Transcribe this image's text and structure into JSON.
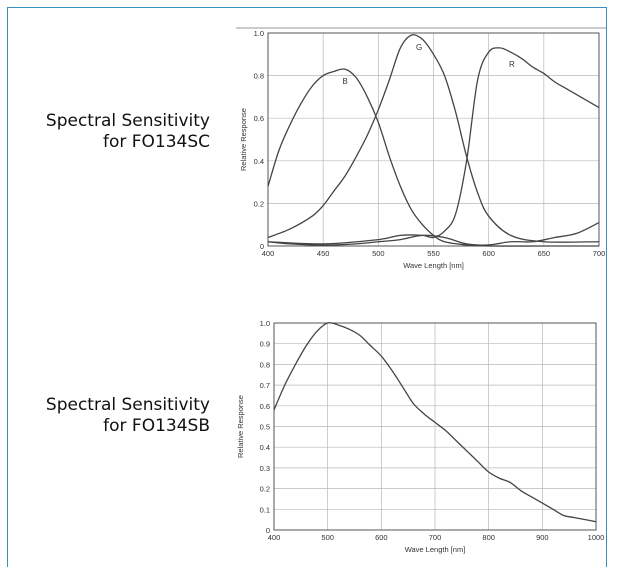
{
  "captions": [
    {
      "line1": "Spectral Sensitivity",
      "line2": "for FO134SC"
    },
    {
      "line1": "Spectral Sensitivity",
      "line2": "for FO134SB"
    }
  ],
  "colors": {
    "frame": "#3a8fbf",
    "curve": "#444444",
    "grid": "#b8b8b8"
  },
  "chart_data": [
    {
      "type": "line",
      "title": "",
      "xlabel": "Wave Length [nm]",
      "ylabel": "Relative Response",
      "xlim": [
        400,
        700
      ],
      "ylim": [
        0,
        1.0
      ],
      "x_ticks": [
        "400",
        "450",
        "500",
        "550",
        "600",
        "650",
        "700"
      ],
      "y_ticks": [
        "0",
        "0.2",
        "0.4",
        "0.6",
        "0.8",
        "1.0"
      ],
      "grid": true,
      "series": [
        {
          "name": "B",
          "label_at": [
            470,
            0.76
          ],
          "x": [
            400,
            410,
            420,
            430,
            440,
            450,
            460,
            470,
            480,
            490,
            500,
            510,
            520,
            530,
            540,
            550,
            560,
            580,
            600,
            650,
            700
          ],
          "y": [
            0.28,
            0.45,
            0.57,
            0.67,
            0.75,
            0.8,
            0.82,
            0.83,
            0.79,
            0.7,
            0.58,
            0.42,
            0.28,
            0.17,
            0.1,
            0.05,
            0.02,
            0.005,
            0,
            0,
            0
          ]
        },
        {
          "name": "G",
          "label_at": [
            537,
            0.92
          ],
          "x": [
            400,
            420,
            440,
            450,
            460,
            470,
            480,
            490,
            500,
            510,
            520,
            530,
            540,
            550,
            560,
            570,
            580,
            590,
            600,
            620,
            650,
            700
          ],
          "y": [
            0.04,
            0.08,
            0.14,
            0.19,
            0.26,
            0.33,
            0.42,
            0.52,
            0.64,
            0.78,
            0.93,
            0.99,
            0.97,
            0.9,
            0.8,
            0.63,
            0.42,
            0.25,
            0.14,
            0.05,
            0.02,
            0.02
          ]
        },
        {
          "name": "R",
          "label_at": [
            621,
            0.84
          ],
          "x": [
            400,
            450,
            500,
            520,
            540,
            550,
            560,
            570,
            580,
            590,
            600,
            610,
            620,
            630,
            640,
            650,
            660,
            670,
            680,
            690,
            700
          ],
          "y": [
            0.02,
            0.01,
            0.03,
            0.05,
            0.05,
            0.04,
            0.07,
            0.15,
            0.4,
            0.78,
            0.91,
            0.93,
            0.91,
            0.88,
            0.84,
            0.81,
            0.77,
            0.74,
            0.71,
            0.68,
            0.65
          ]
        },
        {
          "name": "",
          "label_at": null,
          "x": [
            400,
            420,
            440,
            460,
            480,
            500,
            520,
            540,
            560,
            580,
            600,
            620,
            640,
            660,
            680,
            700
          ],
          "y": [
            0.02,
            0.01,
            0.005,
            0.005,
            0.01,
            0.02,
            0.03,
            0.05,
            0.04,
            0.01,
            0.005,
            0.02,
            0.02,
            0.04,
            0.06,
            0.11
          ]
        }
      ]
    },
    {
      "type": "line",
      "title": "",
      "xlabel": "Wave Length [nm]",
      "ylabel": "Relative Response",
      "xlim": [
        400,
        1000
      ],
      "ylim": [
        0,
        1.0
      ],
      "x_ticks": [
        "400",
        "500",
        "600",
        "700",
        "800",
        "900",
        "1000"
      ],
      "y_ticks": [
        "0",
        "0.1",
        "0.2",
        "0.3",
        "0.4",
        "0.5",
        "0.6",
        "0.7",
        "0.8",
        "0.9",
        "1.0"
      ],
      "grid": true,
      "series": [
        {
          "name": "",
          "label_at": null,
          "x": [
            400,
            420,
            440,
            460,
            480,
            500,
            520,
            540,
            560,
            580,
            600,
            620,
            640,
            660,
            680,
            700,
            720,
            740,
            760,
            780,
            800,
            820,
            840,
            860,
            880,
            900,
            920,
            940,
            960,
            980,
            1000
          ],
          "y": [
            0.58,
            0.7,
            0.8,
            0.89,
            0.96,
            1.0,
            0.99,
            0.97,
            0.94,
            0.89,
            0.84,
            0.77,
            0.69,
            0.61,
            0.56,
            0.52,
            0.48,
            0.43,
            0.38,
            0.33,
            0.28,
            0.25,
            0.23,
            0.19,
            0.16,
            0.13,
            0.1,
            0.07,
            0.06,
            0.05,
            0.04
          ]
        }
      ]
    }
  ]
}
